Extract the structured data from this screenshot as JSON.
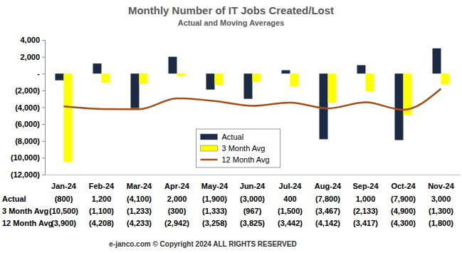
{
  "chart_data": {
    "type": "bar",
    "title": "Monthly Number of IT Jobs Created/Lost",
    "subtitle": "Actual and Moving Averages",
    "annotations": [
      "e-janco.com © Copyright 2024 ALL RIGHTS RESERVED"
    ],
    "categories": [
      "Jan-24",
      "Feb-24",
      "Mar-24",
      "Apr-24",
      "May-24",
      "Jun-24",
      "Jul-24",
      "Aug-24",
      "Sep-24",
      "Oct-24",
      "Nov-24"
    ],
    "series": [
      {
        "name": "Actual",
        "type": "bar",
        "color": "#1c2a45",
        "values": [
          -800,
          1200,
          -4100,
          2000,
          -1900,
          -3000,
          400,
          -7800,
          1000,
          -7900,
          3000
        ],
        "value_labels": [
          "(800)",
          "1,200",
          "(4,100)",
          "2,000",
          "(1,900)",
          "(3,000)",
          "400",
          "(7,800)",
          "1,000",
          "(7,900)",
          "3,000"
        ]
      },
      {
        "name": "3 Month Avg",
        "type": "bar",
        "color": "#ffff00",
        "values": [
          -10500,
          -1100,
          -1233,
          -300,
          -1333,
          -967,
          -1500,
          -3467,
          -2133,
          -4900,
          -1300
        ],
        "value_labels": [
          "(10,500)",
          "(1,100)",
          "(1,233)",
          "(300)",
          "(1,333)",
          "(967)",
          "(1,500)",
          "(3,467)",
          "(2,133)",
          "(4,900)",
          "(1,300)"
        ]
      },
      {
        "name": "12 Month Avg",
        "type": "line",
        "color": "#9e4f1a",
        "line_style": "smooth",
        "values": [
          -3900,
          -4208,
          -4233,
          -2942,
          -3258,
          -3825,
          -3442,
          -4142,
          -3417,
          -4300,
          -1800
        ],
        "value_labels": [
          "(3,900)",
          "(4,208)",
          "(4,233)",
          "(2,942)",
          "(3,258)",
          "(3,825)",
          "(3,442)",
          "(4,142)",
          "(3,417)",
          "(4,300)",
          "(1,800)"
        ]
      }
    ],
    "ylim": [
      -12000,
      4000
    ],
    "yticks": [
      {
        "value": 4000,
        "label": "4,000"
      },
      {
        "value": 2000,
        "label": "2,000"
      },
      {
        "value": 0,
        "label": "-"
      },
      {
        "value": -2000,
        "label": "(2,000)"
      },
      {
        "value": -4000,
        "label": "(4,000)"
      },
      {
        "value": -6000,
        "label": "(6,000)"
      },
      {
        "value": -8000,
        "label": "(8,000)"
      },
      {
        "value": -10000,
        "label": "(10,000)"
      },
      {
        "value": -12000,
        "label": "(12,000)"
      }
    ],
    "grid": false,
    "legend": "lower center"
  }
}
